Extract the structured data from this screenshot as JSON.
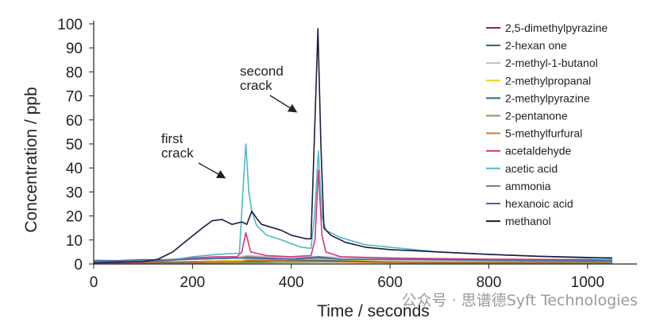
{
  "chart_data": {
    "type": "line",
    "xlabel": "Time / seconds",
    "ylabel": "Concentration / ppb",
    "xlim": [
      0,
      1100
    ],
    "ylim": [
      0,
      100
    ],
    "x_ticks": [
      0,
      200,
      400,
      600,
      800,
      1000
    ],
    "y_ticks": [
      0,
      10,
      20,
      30,
      40,
      50,
      60,
      70,
      80,
      90,
      100
    ],
    "grid": false,
    "legend_position": "right",
    "annotations": [
      {
        "lines": [
          "first",
          "crack"
        ],
        "x": 305,
        "y": 45
      },
      {
        "lines": [
          "second",
          "crack"
        ],
        "x": 450,
        "y": 95
      }
    ],
    "series": [
      {
        "name": "2,5-dimethylpyrazine",
        "color": "#8b2e2e",
        "points": [
          [
            0,
            0.5
          ],
          [
            100,
            0.6
          ],
          [
            200,
            1
          ],
          [
            300,
            1.5
          ],
          [
            310,
            2
          ],
          [
            400,
            1.3
          ],
          [
            455,
            2.5
          ],
          [
            500,
            1.2
          ],
          [
            700,
            0.8
          ],
          [
            1050,
            0.7
          ]
        ]
      },
      {
        "name": "2-hexan one",
        "color": "#2e6b45",
        "points": [
          [
            0,
            0.3
          ],
          [
            200,
            0.5
          ],
          [
            300,
            0.8
          ],
          [
            310,
            1
          ],
          [
            455,
            1.5
          ],
          [
            600,
            0.6
          ],
          [
            1050,
            0.4
          ]
        ]
      },
      {
        "name": "2-methyl-1-butanol",
        "color": "#bdbdbd",
        "points": [
          [
            0,
            1
          ],
          [
            100,
            1.5
          ],
          [
            200,
            2.5
          ],
          [
            300,
            3
          ],
          [
            310,
            3.5
          ],
          [
            400,
            2.5
          ],
          [
            455,
            3
          ],
          [
            550,
            2.5
          ],
          [
            800,
            1.8
          ],
          [
            1050,
            1.5
          ]
        ]
      },
      {
        "name": "2-methylpropanal",
        "color": "#f2d21b",
        "points": [
          [
            0,
            0.5
          ],
          [
            200,
            1
          ],
          [
            300,
            1.5
          ],
          [
            310,
            2
          ],
          [
            455,
            2
          ],
          [
            600,
            1
          ],
          [
            1050,
            0.8
          ]
        ]
      },
      {
        "name": "2-methylpyrazine",
        "color": "#2b6a7b",
        "points": [
          [
            0,
            0.5
          ],
          [
            200,
            0.8
          ],
          [
            300,
            1
          ],
          [
            310,
            1.2
          ],
          [
            455,
            1.5
          ],
          [
            600,
            0.8
          ],
          [
            1050,
            0.6
          ]
        ]
      },
      {
        "name": "2-pentanone",
        "color": "#8a9a5b",
        "points": [
          [
            0,
            0.2
          ],
          [
            300,
            0.5
          ],
          [
            455,
            0.8
          ],
          [
            1050,
            0.3
          ]
        ]
      },
      {
        "name": "5-methylfurfural",
        "color": "#d07a2a",
        "points": [
          [
            0,
            0.2
          ],
          [
            200,
            0.5
          ],
          [
            300,
            1
          ],
          [
            310,
            1.5
          ],
          [
            455,
            1
          ],
          [
            600,
            0.5
          ],
          [
            1050,
            0.3
          ]
        ]
      },
      {
        "name": "acetaldehyde",
        "color": "#d6357f",
        "points": [
          [
            0,
            0.5
          ],
          [
            100,
            0.8
          ],
          [
            150,
            1.5
          ],
          [
            200,
            2.5
          ],
          [
            250,
            3
          ],
          [
            290,
            3
          ],
          [
            300,
            5
          ],
          [
            308,
            13
          ],
          [
            318,
            5
          ],
          [
            350,
            3.5
          ],
          [
            400,
            3
          ],
          [
            440,
            3.5
          ],
          [
            448,
            10
          ],
          [
            455,
            39
          ],
          [
            462,
            12
          ],
          [
            470,
            5
          ],
          [
            500,
            3
          ],
          [
            600,
            2.5
          ],
          [
            800,
            2
          ],
          [
            1000,
            1.8
          ],
          [
            1050,
            1.5
          ]
        ]
      },
      {
        "name": "acetic acid",
        "color": "#4fb8c9",
        "points": [
          [
            0,
            1
          ],
          [
            100,
            1.2
          ],
          [
            150,
            1.5
          ],
          [
            200,
            3
          ],
          [
            250,
            4
          ],
          [
            295,
            4.5
          ],
          [
            302,
            30
          ],
          [
            308,
            50
          ],
          [
            314,
            30
          ],
          [
            320,
            22
          ],
          [
            330,
            16
          ],
          [
            350,
            12
          ],
          [
            380,
            10
          ],
          [
            420,
            7
          ],
          [
            440,
            6.5
          ],
          [
            447,
            20
          ],
          [
            455,
            47
          ],
          [
            462,
            20
          ],
          [
            470,
            14
          ],
          [
            500,
            11
          ],
          [
            550,
            8
          ],
          [
            600,
            7
          ],
          [
            700,
            5
          ],
          [
            800,
            4
          ],
          [
            900,
            3.2
          ],
          [
            1000,
            2.5
          ],
          [
            1050,
            2.2
          ]
        ]
      },
      {
        "name": "ammonia",
        "color": "#7a7096",
        "points": [
          [
            0,
            0.8
          ],
          [
            100,
            1
          ],
          [
            200,
            2
          ],
          [
            300,
            2.5
          ],
          [
            310,
            3
          ],
          [
            400,
            2
          ],
          [
            455,
            2.5
          ],
          [
            500,
            2
          ],
          [
            800,
            1.5
          ],
          [
            1050,
            1.2
          ]
        ]
      },
      {
        "name": "hexanoic acid",
        "color": "#4466aa",
        "points": [
          [
            0,
            1.5
          ],
          [
            50,
            1.4
          ],
          [
            100,
            1.8
          ],
          [
            150,
            1.6
          ],
          [
            200,
            2
          ],
          [
            300,
            2.5
          ],
          [
            400,
            2
          ],
          [
            455,
            3
          ],
          [
            500,
            2
          ],
          [
            700,
            1.8
          ],
          [
            900,
            1.7
          ],
          [
            1050,
            1.6
          ]
        ]
      },
      {
        "name": "methanol",
        "color": "#1a1f3a",
        "points": [
          [
            0,
            0.5
          ],
          [
            100,
            1
          ],
          [
            130,
            2
          ],
          [
            160,
            5
          ],
          [
            190,
            10
          ],
          [
            220,
            15
          ],
          [
            240,
            18
          ],
          [
            260,
            18.5
          ],
          [
            280,
            16.5
          ],
          [
            300,
            17.5
          ],
          [
            310,
            16.5
          ],
          [
            320,
            22
          ],
          [
            330,
            19
          ],
          [
            340,
            16.5
          ],
          [
            380,
            14
          ],
          [
            400,
            12
          ],
          [
            430,
            10.5
          ],
          [
            440,
            10.5
          ],
          [
            448,
            60
          ],
          [
            454,
            98
          ],
          [
            460,
            50
          ],
          [
            466,
            15
          ],
          [
            480,
            12
          ],
          [
            510,
            9
          ],
          [
            550,
            7
          ],
          [
            600,
            6
          ],
          [
            700,
            5
          ],
          [
            800,
            4
          ],
          [
            900,
            3.2
          ],
          [
            1000,
            2.7
          ],
          [
            1050,
            2.5
          ]
        ]
      }
    ]
  },
  "watermark": "公众号 · 思谱德Syft Technologies"
}
